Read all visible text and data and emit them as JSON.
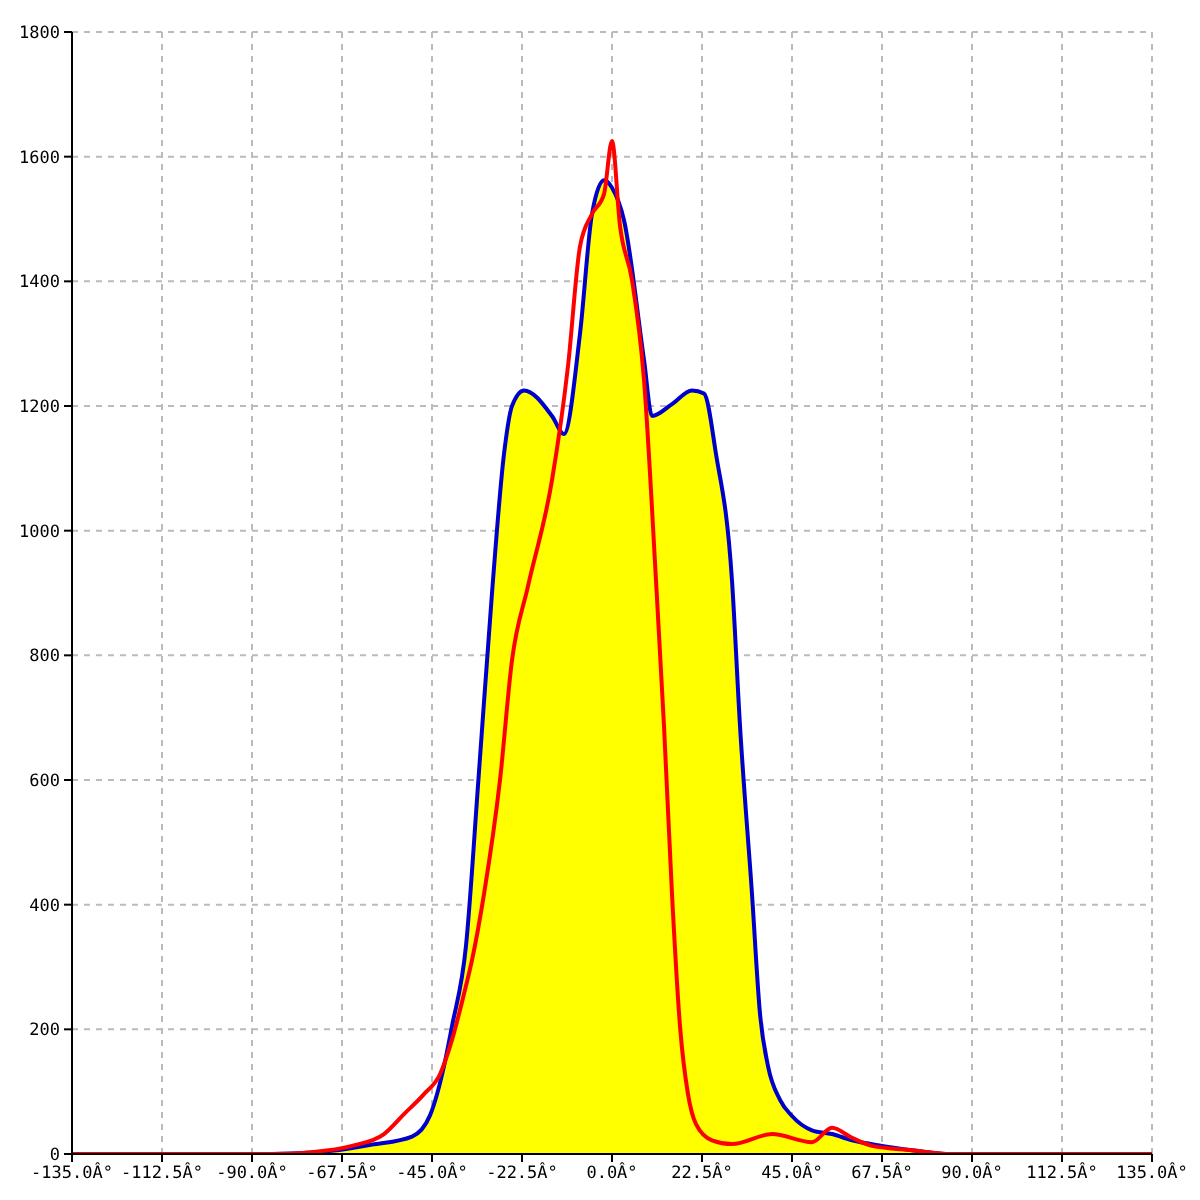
{
  "chart_data": {
    "type": "area",
    "xlim": [
      -135,
      135
    ],
    "xticks": [
      {
        "value": -135,
        "label": "-135.0Â°"
      },
      {
        "value": -112.5,
        "label": "-112.5Â°"
      },
      {
        "value": -90,
        "label": "-90.0Â°"
      },
      {
        "value": -67.5,
        "label": "-67.5Â°"
      },
      {
        "value": -45,
        "label": "-45.0Â°"
      },
      {
        "value": -22.5,
        "label": "-22.5Â°"
      },
      {
        "value": 0,
        "label": "0.0Â°"
      },
      {
        "value": 22.5,
        "label": "22.5Â°"
      },
      {
        "value": 45,
        "label": "45.0Â°"
      },
      {
        "value": 67.5,
        "label": "67.5Â°"
      },
      {
        "value": 90,
        "label": "90.0Â°"
      },
      {
        "value": 112.5,
        "label": "112.5Â°"
      },
      {
        "value": 135,
        "label": "135.0Â°"
      }
    ],
    "ylim": [
      0,
      1800
    ],
    "yticks": [
      0,
      200,
      400,
      600,
      800,
      1000,
      1200,
      1400,
      1600,
      1800
    ],
    "color": "#0000cc",
    "grid": true,
    "marker": "none",
    "series": [
      {
        "color": "#ffff00",
        "x": [
          -85,
          -70,
          -60,
          -50,
          -45.5,
          -42,
          -40,
          -36.5,
          -33.4,
          -30,
          -27,
          -25,
          -22,
          -15,
          -12,
          -8,
          -5,
          -2,
          0,
          3,
          8,
          10,
          15,
          20,
          23,
          26,
          30,
          32,
          35,
          37,
          39,
          42,
          45,
          50,
          55,
          60,
          67.5,
          75,
          83
        ],
        "values": [
          0,
          5,
          15,
          28,
          62,
          141,
          205,
          334,
          600,
          900,
          1123,
          1200,
          1225,
          1184,
          1155,
          1316,
          1508,
          1562,
          1550,
          1498,
          1274,
          1184,
          1203,
          1225,
          1220,
          1123,
          920,
          687,
          417,
          225,
          141,
          87,
          61,
          38,
          32,
          22,
          13,
          6,
          0
        ]
      },
      {
        "type": "line",
        "color": "#ff0000",
        "x": [
          -135,
          -85,
          -75,
          -65,
          -57,
          -52,
          -47,
          -43,
          -40,
          -37,
          -35,
          -32,
          -28,
          -25,
          -21,
          -15,
          -11,
          -8,
          -5,
          -2,
          0,
          2,
          5,
          8,
          11,
          13,
          15,
          17,
          19,
          21,
          25,
          30,
          40,
          50,
          55,
          60,
          65,
          75,
          85,
          135
        ],
        "values": [
          0,
          0,
          3,
          13,
          32,
          64,
          96,
          128,
          183,
          257,
          311,
          417,
          600,
          792,
          911,
          1081,
          1264,
          1456,
          1508,
          1540,
          1625,
          1489,
          1402,
          1242,
          920,
          687,
          417,
          205,
          96,
          48,
          22,
          16,
          32,
          19,
          42,
          26,
          13,
          6,
          0,
          0
        ]
      }
    ]
  }
}
